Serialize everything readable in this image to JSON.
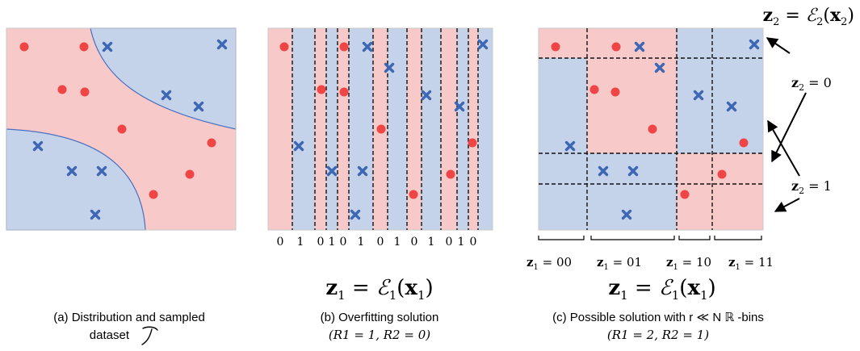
{
  "colors": {
    "red_region": "#f7c9c9",
    "blue_region": "#c5d3ea",
    "red_dot": "#f04545",
    "blue_cross": "#3d67b4",
    "boundary": "#4a6fc0",
    "frame": "#c9c9c9"
  },
  "panel_a": {
    "caption_line1": "(a) Distribution and sampled",
    "caption_line2": "dataset"
  },
  "panel_b": {
    "bit_labels": [
      "0",
      "1",
      "0",
      "1",
      "0",
      "1",
      "0",
      "1",
      "0",
      "1",
      "0",
      "1",
      "0"
    ],
    "formula": "z1 = E1(x1)",
    "caption_line1": "(b) Overfitting solution",
    "caption_line2": "(R1 = 1,  R2 = 0)"
  },
  "panel_c": {
    "z2_header": "z2 = E2(x2)",
    "z2_label_0": "z2 = 0",
    "z2_label_1": "z2 = 1",
    "z1_labels": [
      "z1 = 00",
      "z1 = 01",
      "z1 = 10",
      "z1 = 11"
    ],
    "formula": "z1 = E1(x1)",
    "caption_line1": "(c) Possible solution with r ≪ N ℝ -bins",
    "caption_line2": "(R1 = 2,  R2 = 1)"
  }
}
